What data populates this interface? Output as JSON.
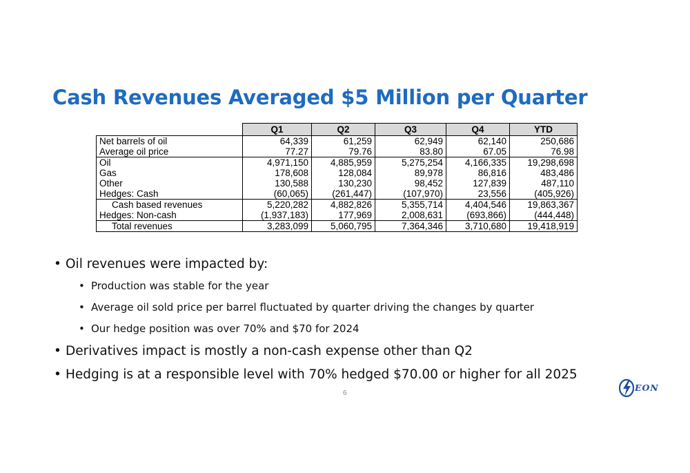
{
  "title": "Cash Revenues Averaged $5 Million per Quarter",
  "table": {
    "headers": [
      "Q1",
      "Q2",
      "Q3",
      "Q4",
      "YTD"
    ],
    "rows": [
      {
        "label": "Net barrels of oil",
        "values": [
          "64,339",
          "61,259",
          "62,949",
          "62,140",
          "250,686"
        ]
      },
      {
        "label": "Average oil price",
        "values": [
          "77.27",
          "79.76",
          "83.80",
          "67.05",
          "76.98"
        ]
      },
      {
        "label": "Oil",
        "values": [
          "4,971,150",
          "4,885,959",
          "5,275,254",
          "4,166,335",
          "19,298,698"
        ]
      },
      {
        "label": "Gas",
        "values": [
          "178,608",
          "128,084",
          "89,978",
          "86,816",
          "483,486"
        ]
      },
      {
        "label": "Other",
        "values": [
          "130,588",
          "130,230",
          "98,452",
          "127,839",
          "487,110"
        ]
      },
      {
        "label": "Hedges: Cash",
        "values": [
          "(60,065)",
          "(261,447)",
          "(107,970)",
          "23,556",
          "(405,926)"
        ]
      },
      {
        "label": "Cash based revenues",
        "values": [
          "5,220,282",
          "4,882,826",
          "5,355,714",
          "4,404,546",
          "19,863,367"
        ]
      },
      {
        "label": "Hedges:  Non-cash",
        "values": [
          "(1,937,183)",
          "177,969",
          "2,008,631",
          "(693,866)",
          "(444,448)"
        ]
      },
      {
        "label": "Total revenues",
        "values": [
          "3,283,099",
          "5,060,795",
          "7,364,346",
          "3,710,680",
          "19,418,919"
        ]
      }
    ]
  },
  "bullets": {
    "b1": "Oil revenues were impacted by:",
    "b1_sub": [
      "Production was stable for the year",
      "Average oil sold price per barrel fluctuated by quarter driving the changes by quarter",
      "Our hedge position was over 70% and $70 for 2024"
    ],
    "b2": "Derivatives impact is mostly a non-cash expense other than Q2",
    "b3": "Hedging is at a responsible level with 70% hedged $70.00 or higher for all 2025"
  },
  "page_number": "6",
  "logo": {
    "text": "EON",
    "color": "#1f4e9c"
  },
  "colors": {
    "title": "#1f6bbf",
    "header_fill": "#d9d9d9"
  }
}
